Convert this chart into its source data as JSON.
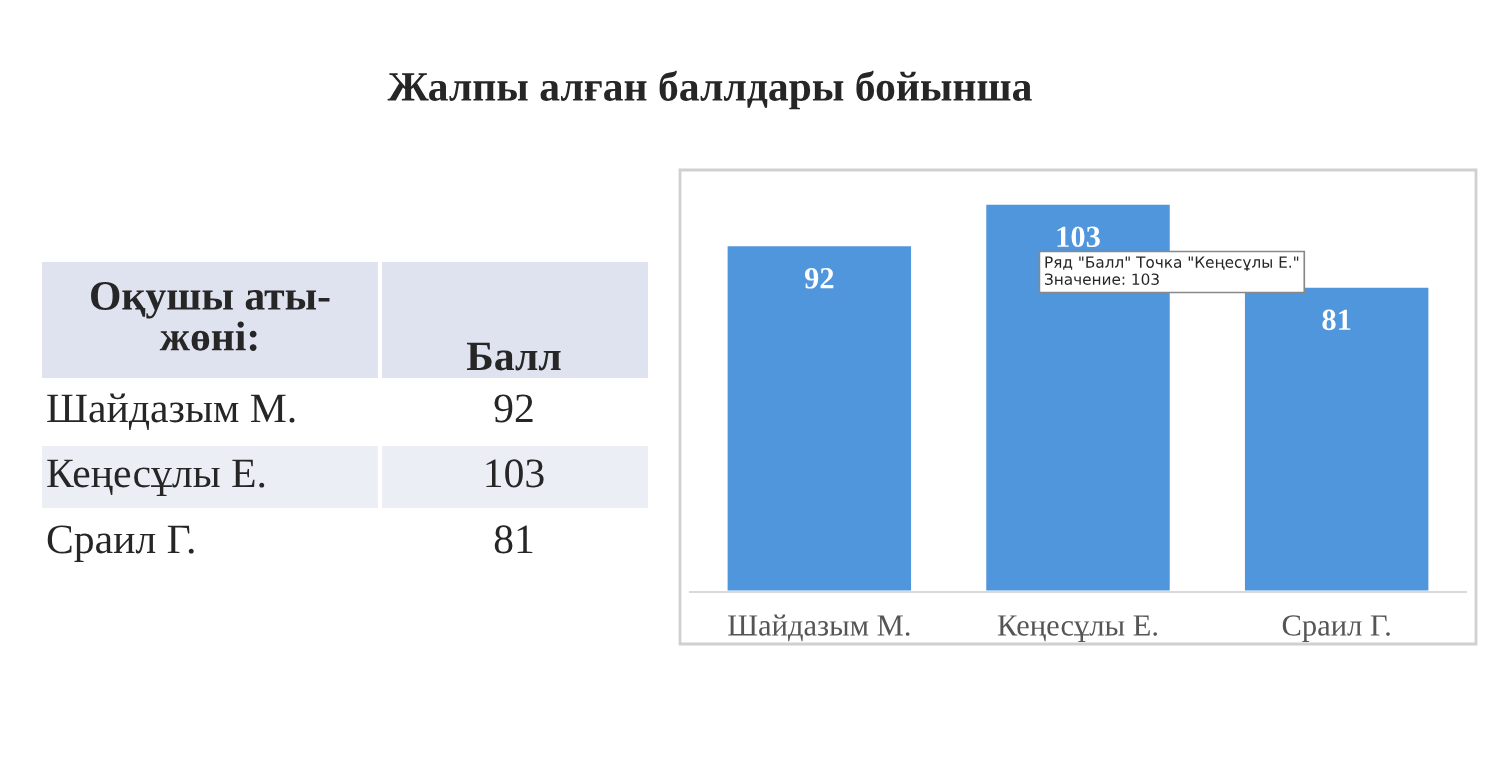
{
  "chart_data": [
    {
      "type": "other",
      "categories": [
        "Шайдазым М.",
        "Кеңесұлы Е.",
        "Сраил Г."
      ],
      "values": [
        92,
        103,
        81
      ],
      "data_labels": true,
      "annotations": [
        "Оқушы аты-жөні:",
        "Балл"
      ]
    },
    {
      "type": "bar",
      "title": "Жалпы алған баллдары бойынша",
      "categories": [
        "Шайдазым М.",
        "Кеңесұлы Е.",
        "Сраил Г."
      ],
      "values": [
        92,
        103,
        81
      ],
      "color": "#5096dc",
      "data_labels": true,
      "annotations": [
        "Ряд \"Балл\" Точка \"Кеңесұлы Е.\"\nЗначение: 103"
      ]
    }
  ]
}
